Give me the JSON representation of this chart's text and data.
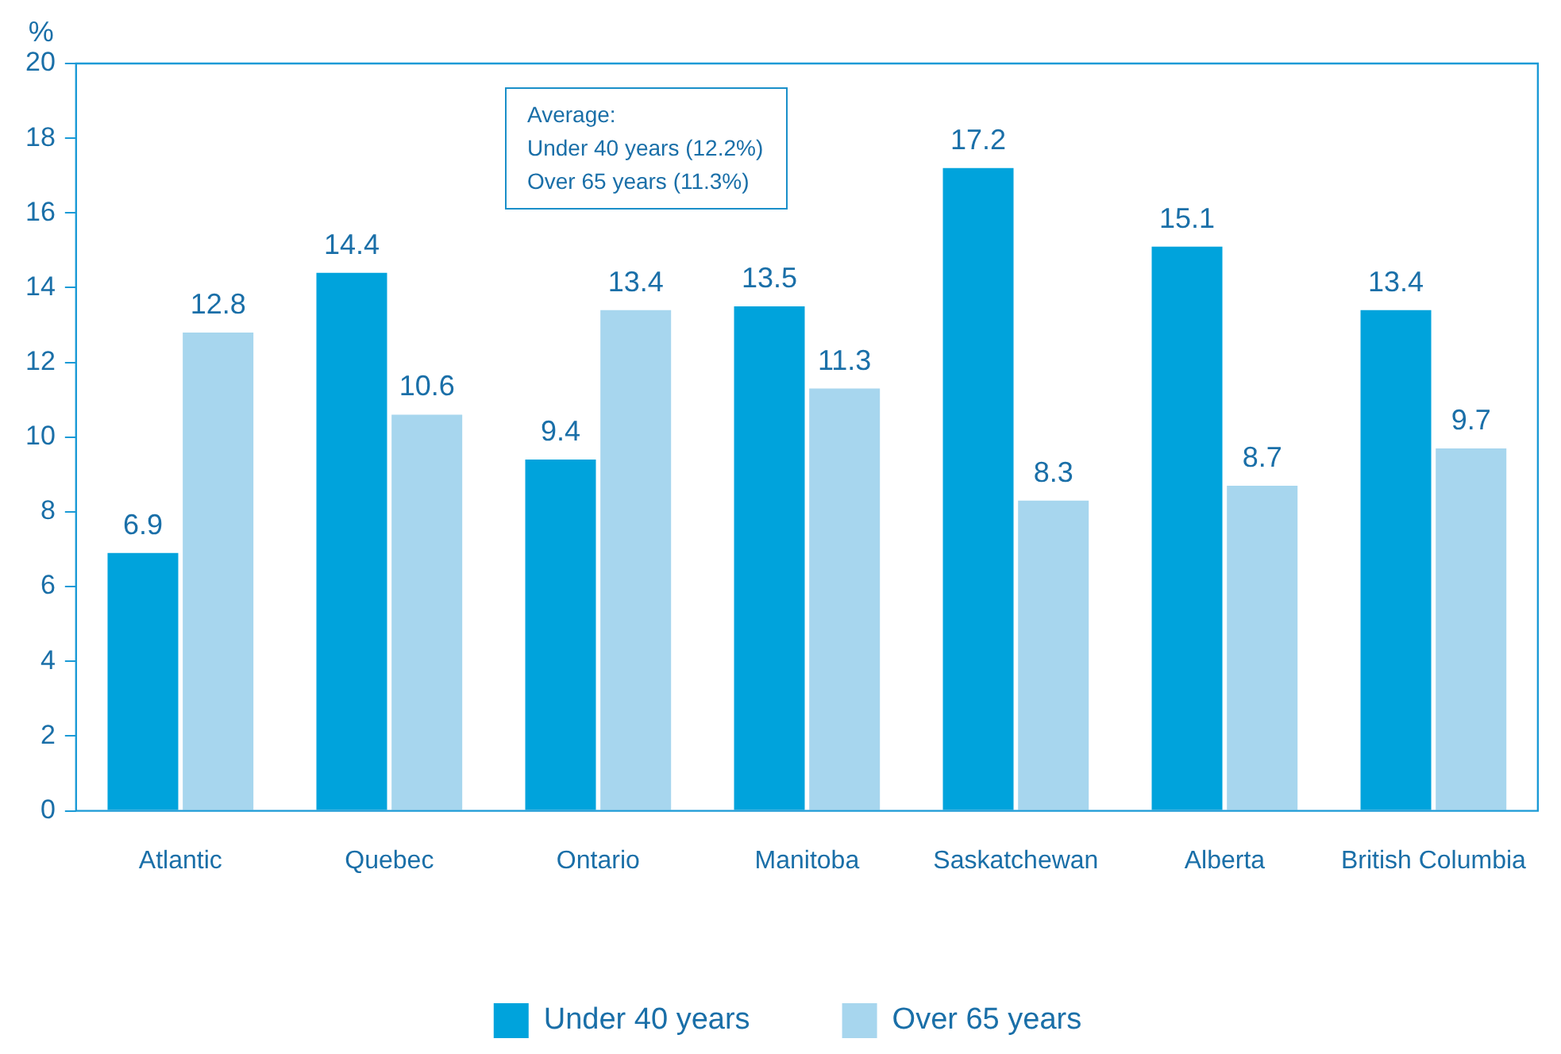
{
  "chart_data": {
    "type": "bar",
    "ylabel": "%",
    "categories": [
      "Atlantic",
      "Quebec",
      "Ontario",
      "Manitoba",
      "Saskatchewan",
      "Alberta",
      "British Columbia"
    ],
    "series": [
      {
        "name": "Under 40 years",
        "color": "#00a3dc",
        "values": [
          6.9,
          14.4,
          9.4,
          13.5,
          17.2,
          15.1,
          13.4
        ]
      },
      {
        "name": "Over 65 years",
        "color": "#a7d6ee",
        "values": [
          12.8,
          10.6,
          13.4,
          11.3,
          8.3,
          8.7,
          9.7
        ]
      }
    ],
    "ylim": [
      0,
      20
    ],
    "yticks": [
      0,
      2,
      4,
      6,
      8,
      10,
      12,
      14,
      16,
      18,
      20
    ],
    "grid": false,
    "legend": "bottom",
    "data_labels": true,
    "annotations": [
      "Average:",
      "Under 40 years (12.2%)",
      "Over 65 years (11.3%)"
    ]
  }
}
